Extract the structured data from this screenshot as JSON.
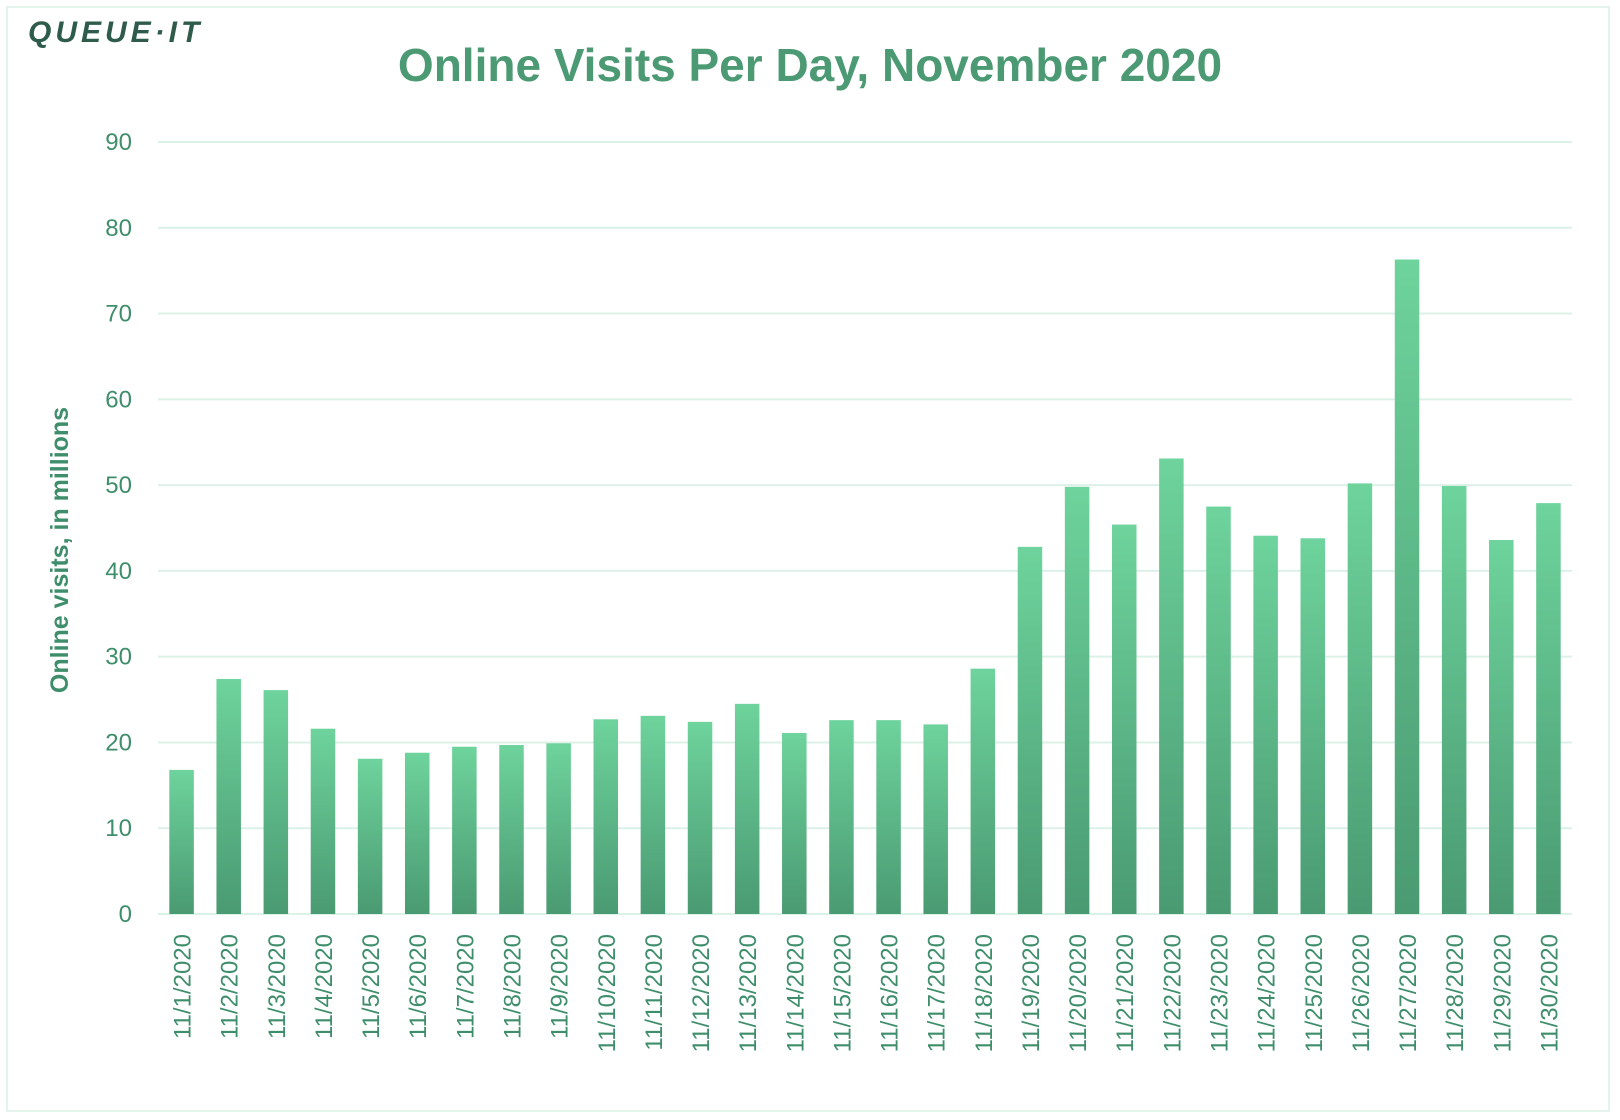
{
  "brand": {
    "logo": "QUEUE·IT"
  },
  "colors": {
    "bar_top": "#6ed39c",
    "bar_bottom": "#4a9a72",
    "grid": "#dcf1e7",
    "text": "#3f8e6b"
  },
  "chart_data": {
    "type": "bar",
    "title": "Online Visits Per Day, November 2020",
    "xlabel": "",
    "ylabel": "Online visits, in millions",
    "ylim": [
      0,
      90
    ],
    "yticks": [
      0,
      10,
      20,
      30,
      40,
      50,
      60,
      70,
      80,
      90
    ],
    "grid": true,
    "categories": [
      "11/1/2020",
      "11/2/2020",
      "11/3/2020",
      "11/4/2020",
      "11/5/2020",
      "11/6/2020",
      "11/7/2020",
      "11/8/2020",
      "11/9/2020",
      "11/10/2020",
      "11/11/2020",
      "11/12/2020",
      "11/13/2020",
      "11/14/2020",
      "11/15/2020",
      "11/16/2020",
      "11/17/2020",
      "11/18/2020",
      "11/19/2020",
      "11/20/2020",
      "11/21/2020",
      "11/22/2020",
      "11/23/2020",
      "11/24/2020",
      "11/25/2020",
      "11/26/2020",
      "11/27/2020",
      "11/28/2020",
      "11/29/2020",
      "11/30/2020"
    ],
    "values": [
      16.8,
      27.4,
      26.1,
      21.6,
      18.1,
      18.8,
      19.5,
      19.7,
      19.9,
      22.7,
      23.1,
      22.4,
      24.5,
      21.1,
      22.6,
      22.6,
      22.1,
      28.6,
      42.8,
      49.8,
      45.4,
      53.1,
      47.5,
      44.1,
      43.8,
      50.2,
      76.3,
      49.9,
      43.6,
      47.9
    ]
  }
}
